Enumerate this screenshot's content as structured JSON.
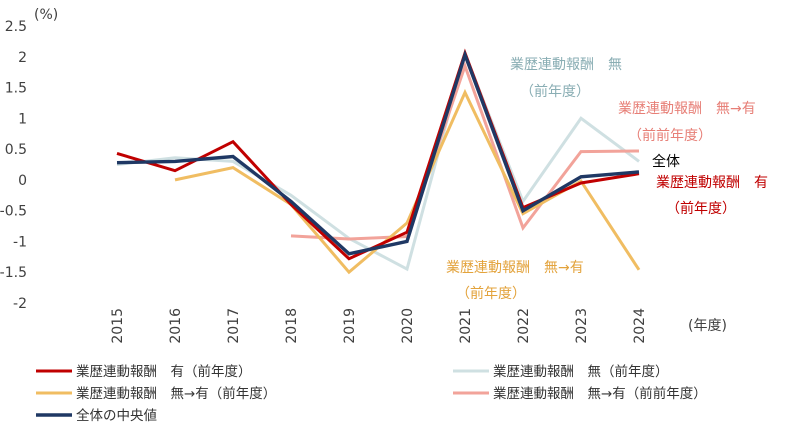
{
  "chart_data": {
    "type": "line",
    "unit_label": "(%)",
    "xlabel": "(年度)",
    "x": [
      "2015",
      "2016",
      "2017",
      "2018",
      "2019",
      "2020",
      "2021",
      "2022",
      "2023",
      "2024"
    ],
    "ylim": [
      -2,
      2.5
    ],
    "yticks": [
      "2.5",
      "2",
      "1.5",
      "1",
      "0.5",
      "0",
      "-0.5",
      "-1",
      "-1.5",
      "-2"
    ],
    "series": [
      {
        "id": "wo",
        "name": "業歴連動報酬　無（前年度）",
        "color": "#cfe0e2",
        "values": [
          0.25,
          0.36,
          0.3,
          -0.25,
          -0.95,
          -1.45,
          2.05,
          -0.35,
          1.0,
          0.3
        ]
      },
      {
        "id": "wow_pp",
        "name": "業歴連動報酬　無→有（前前年度）",
        "color": "#f2a39a",
        "values": [
          null,
          null,
          null,
          -0.91,
          -0.96,
          -0.92,
          1.85,
          -0.78,
          0.46,
          0.47
        ]
      },
      {
        "id": "wow",
        "name": "業歴連動報酬　無→有（前年度）",
        "color": "#f0bd62",
        "values": [
          null,
          0.0,
          0.2,
          -0.4,
          -1.5,
          -0.7,
          1.42,
          -0.55,
          -0.02,
          -1.46
        ]
      },
      {
        "id": "w",
        "name": "業歴連動報酬　有（前年度）",
        "color": "#c00000",
        "values": [
          0.43,
          0.15,
          0.62,
          -0.4,
          -1.28,
          -0.85,
          2.06,
          -0.45,
          -0.05,
          0.1
        ]
      },
      {
        "id": "med",
        "name": "全体の中央値",
        "color": "#1f3864",
        "values": [
          0.28,
          0.3,
          0.38,
          -0.35,
          -1.2,
          -1.0,
          2.03,
          -0.5,
          0.05,
          0.13
        ]
      }
    ],
    "annotations": [
      {
        "series": "wo",
        "lines": [
          "業歴連動報酬　無",
          "（前年度）"
        ]
      },
      {
        "series": "wow_pp",
        "lines": [
          "業歴連動報酬　無→有",
          "（前前年度）"
        ]
      },
      {
        "series": "med",
        "lines": [
          "全体"
        ]
      },
      {
        "series": "w",
        "lines": [
          "業歴連動報酬　有",
          "（前年度）"
        ]
      },
      {
        "series": "wow",
        "lines": [
          "業歴連動報酬　無→有",
          "（前年度）"
        ]
      }
    ],
    "legend": {
      "placement": "bottom",
      "order": [
        "w",
        "wo",
        "wow",
        "wow_pp",
        "med"
      ]
    }
  }
}
